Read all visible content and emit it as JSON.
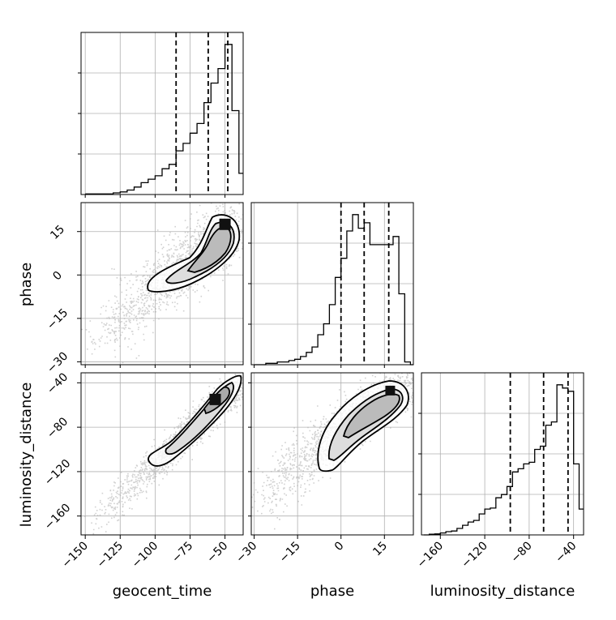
{
  "chart_data": {
    "type": "corner",
    "parameters": [
      "geocent_time",
      "phase",
      "luminosity_distance"
    ],
    "ranges": {
      "geocent_time": [
        -153,
        -37
      ],
      "phase": [
        -31,
        25
      ],
      "luminosity_distance": [
        -177,
        -31
      ]
    },
    "ticks": {
      "geocent_time": [
        -150,
        -125,
        -100,
        -75,
        -50
      ],
      "phase": [
        -30,
        -15,
        0,
        15
      ],
      "luminosity_distance": [
        -160,
        -120,
        -80,
        -40
      ]
    },
    "tick_labels": {
      "geocent_time": [
        "−150",
        "−125",
        "−100",
        "−75",
        "−50"
      ],
      "phase": [
        "−30",
        "−15",
        "0",
        "15"
      ],
      "luminosity_distance": [
        "−160",
        "−120",
        "−80",
        "−40"
      ]
    },
    "axis_labels": {
      "bottom": [
        "geocent_time",
        "phase",
        "luminosity_distance"
      ],
      "left": [
        "phase",
        "luminosity_distance"
      ]
    },
    "quantiles": {
      "geocent_time": [
        -85,
        -62,
        -48
      ],
      "phase": [
        0,
        8,
        16.5
      ],
      "luminosity_distance": [
        -97,
        -67,
        -45
      ]
    },
    "histograms": {
      "geocent_time": {
        "bin_edges": [
          -150,
          -145,
          -140,
          -135,
          -130,
          -125,
          -120,
          -115,
          -110,
          -105,
          -100,
          -95,
          -90,
          -85,
          -80,
          -75,
          -70,
          -65,
          -60,
          -55,
          -50,
          -45,
          -40,
          -37
        ],
        "counts": [
          0.3,
          0.3,
          0.3,
          0.3,
          0.8,
          1.3,
          2.2,
          3.7,
          5.9,
          7.6,
          9.3,
          12.8,
          15,
          21.7,
          25.4,
          30.5,
          35.3,
          45.7,
          55.4,
          62.6,
          74.6,
          41.7,
          10.5
        ]
      },
      "phase": {
        "bin_edges": [
          -30,
          -28,
          -26,
          -24,
          -22,
          -20,
          -18,
          -16,
          -14,
          -12,
          -10,
          -8,
          -6,
          -4,
          -2,
          0,
          2,
          4,
          6,
          8,
          10,
          12,
          14,
          16,
          18,
          20,
          22,
          24,
          25
        ],
        "counts": [
          0,
          0,
          0.5,
          0.5,
          1,
          1,
          1.5,
          2,
          3,
          4.5,
          6.5,
          11,
          15,
          22,
          32,
          39,
          49,
          55,
          50,
          52,
          44,
          44,
          44,
          44,
          47,
          26,
          1,
          0
        ]
      },
      "luminosity_distance": {
        "bin_edges": [
          -175,
          -170,
          -165,
          -160,
          -155,
          -150,
          -145,
          -140,
          -135,
          -130,
          -125,
          -120,
          -115,
          -110,
          -105,
          -100,
          -95,
          -90,
          -85,
          -80,
          -75,
          -70,
          -65,
          -60,
          -55,
          -50,
          -45,
          -40,
          -35,
          -31
        ],
        "counts": [
          0,
          0.2,
          0.3,
          0.6,
          1,
          1.2,
          2,
          3,
          4,
          4.5,
          6.5,
          8,
          8.3,
          11.5,
          12.5,
          15,
          19.5,
          20.5,
          22,
          22.5,
          26.5,
          27.5,
          34,
          35,
          46.5,
          45.5,
          44.5,
          22,
          8
        ]
      }
    },
    "scatter_pairs": [
      {
        "x": "geocent_time",
        "y": "phase",
        "peak": [
          -50,
          17.5
        ]
      },
      {
        "x": "geocent_time",
        "y": "luminosity_distance",
        "peak": [
          -57,
          -55
        ]
      },
      {
        "x": "phase",
        "y": "luminosity_distance",
        "peak": [
          17,
          -47
        ]
      }
    ],
    "grid": true,
    "contour_style": "black lines, gray filled density"
  }
}
